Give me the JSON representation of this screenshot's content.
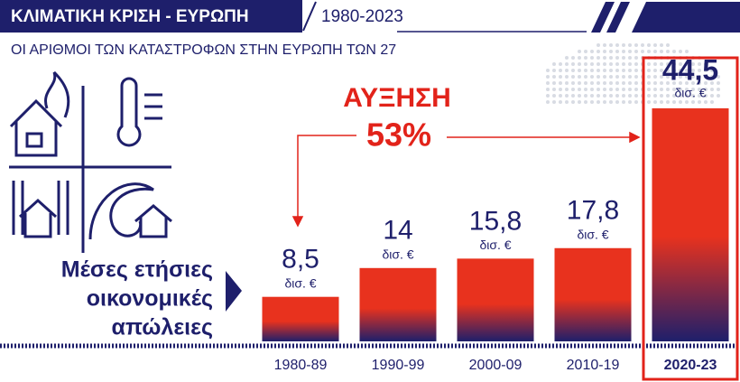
{
  "chart_data": {
    "type": "bar",
    "title": "ΚΛΙΜΑΤΙΚΗ ΚΡΙΣΗ - ΕΥΡΩΠΗ",
    "period": "1980-2023",
    "subtitle": "ΟΙ ΑΡΙΘΜΟΙ ΤΩΝ ΚΑΤΑΣΤΡΟΦΩΝ ΣΤΗΝ ΕΥΡΩΠΗ ΤΩΝ 27",
    "measure_label": [
      "Μέσες ετήσιες",
      "οικονομικές",
      "απώλειες"
    ],
    "unit": "δισ. €",
    "annotation": {
      "text": "ΑΥΞΗΣΗ",
      "value": 53,
      "value_label": "53%"
    },
    "categories": [
      "1980-89",
      "1990-99",
      "2000-09",
      "2010-19",
      "2020-23"
    ],
    "values": [
      8.5,
      14,
      15.8,
      17.8,
      44.5
    ],
    "value_labels": [
      "8,5",
      "14",
      "15,8",
      "17,8",
      "44,5"
    ],
    "highlight": 4,
    "color_top": "#e8321e",
    "color_bottom": "#1e1f6b"
  }
}
